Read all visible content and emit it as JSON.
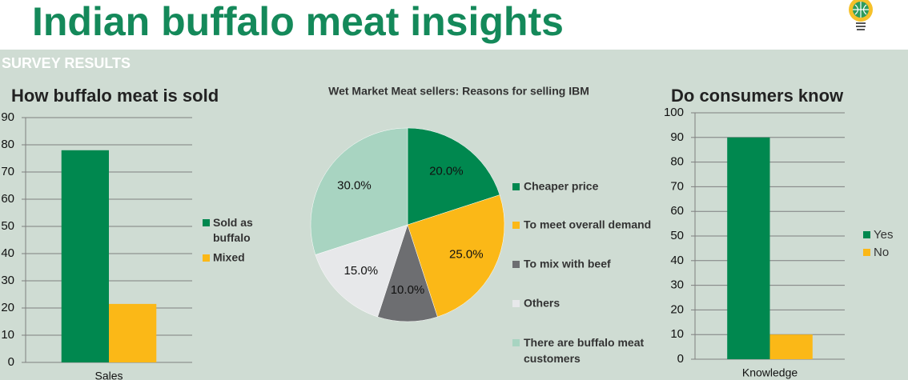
{
  "title": "Indian buffalo meat insights",
  "section": "SURVEY RESULTS",
  "chart_data": [
    {
      "type": "bar",
      "title": "How buffalo meat is sold",
      "categories": [
        "Sales"
      ],
      "series": [
        {
          "name": "Sold as buffalo",
          "color": "#00884f",
          "values": [
            78
          ]
        },
        {
          "name": "Mixed",
          "color": "#fbb817",
          "values": [
            21.5
          ]
        }
      ],
      "ylim": [
        0,
        90
      ],
      "yticks": [
        0,
        10,
        20,
        30,
        40,
        50,
        60,
        70,
        80,
        90
      ],
      "grid": true,
      "legend": "right"
    },
    {
      "type": "pie",
      "title": "Wet Market Meat sellers: Reasons for selling IBM",
      "categories": [
        "Cheaper price",
        "To meet overall demand",
        "To mix with beef",
        "Others",
        "There are buffalo meat customers"
      ],
      "values": [
        20,
        25,
        10,
        15,
        30
      ],
      "value_labels": [
        "20.0%",
        "25.0%",
        "10.0%",
        "15.0%",
        "30.0%"
      ],
      "colors": [
        "#00884f",
        "#fbb817",
        "#6d6e71",
        "#e7e8ea",
        "#a8d4c1"
      ],
      "legend": "right"
    },
    {
      "type": "bar",
      "title": "Do consumers know",
      "categories": [
        "Knowledge"
      ],
      "series": [
        {
          "name": "Yes",
          "color": "#00884f",
          "values": [
            90
          ]
        },
        {
          "name": "No",
          "color": "#fbb817",
          "values": [
            10
          ]
        }
      ],
      "ylim": [
        0,
        100
      ],
      "yticks": [
        0,
        10,
        20,
        30,
        40,
        50,
        60,
        70,
        80,
        90,
        100
      ],
      "grid": true,
      "legend": "right"
    }
  ]
}
